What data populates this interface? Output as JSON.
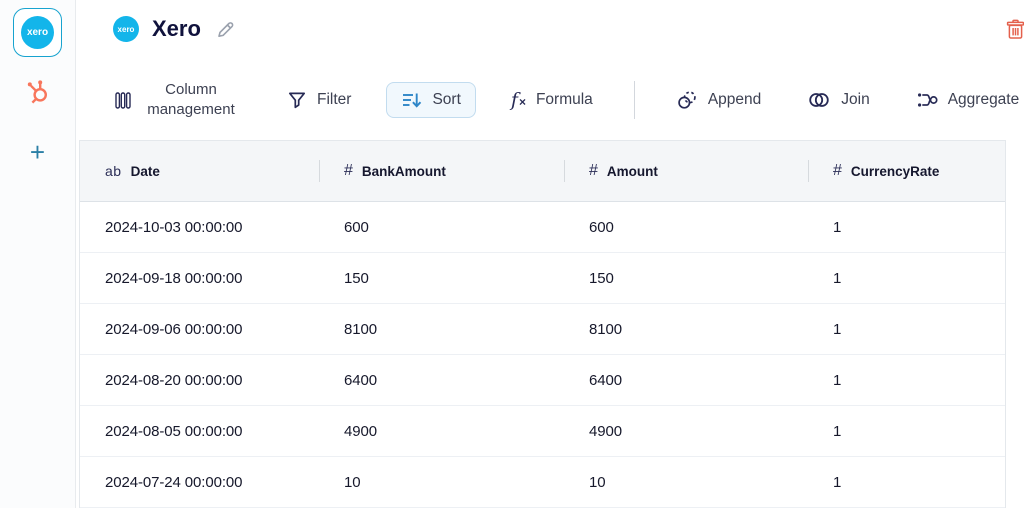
{
  "sidebar": {
    "sources": [
      {
        "id": "xero",
        "logo_text": "xero",
        "active": true
      },
      {
        "id": "hubspot",
        "active": false
      }
    ],
    "add_button_label": "+"
  },
  "header": {
    "source_logo_text": "xero",
    "title": "Xero",
    "icons": {
      "edit": "pencil",
      "delete": "trash"
    }
  },
  "toolbar": {
    "column_management": "Column management",
    "filter": "Filter",
    "sort": "Sort",
    "formula_f": "f",
    "formula_x": "×",
    "formula": "Formula",
    "append": "Append",
    "join": "Join",
    "aggregate": "Aggregate",
    "active_item": "Sort"
  },
  "table": {
    "type_icons": {
      "text": "ab",
      "number": "#"
    },
    "columns": [
      {
        "name": "Date",
        "type": "text"
      },
      {
        "name": "BankAmount",
        "type": "number"
      },
      {
        "name": "Amount",
        "type": "number"
      },
      {
        "name": "CurrencyRate",
        "type": "number"
      }
    ],
    "rows": [
      [
        "2024-10-03 00:00:00",
        "600",
        "600",
        "1"
      ],
      [
        "2024-09-18 00:00:00",
        "150",
        "150",
        "1"
      ],
      [
        "2024-09-06 00:00:00",
        "8100",
        "8100",
        "1"
      ],
      [
        "2024-08-20 00:00:00",
        "6400",
        "6400",
        "1"
      ],
      [
        "2024-08-05 00:00:00",
        "4900",
        "4900",
        "1"
      ],
      [
        "2024-07-24 00:00:00",
        "10",
        "10",
        "1"
      ]
    ]
  },
  "colors": {
    "xero_teal": "#13b5ea",
    "hubspot_orange": "#f8765c",
    "accent_blue": "#2e86c8",
    "delete_red": "#e4604c",
    "icon_navy": "#272a55",
    "header_bg": "#f4f6f8"
  }
}
